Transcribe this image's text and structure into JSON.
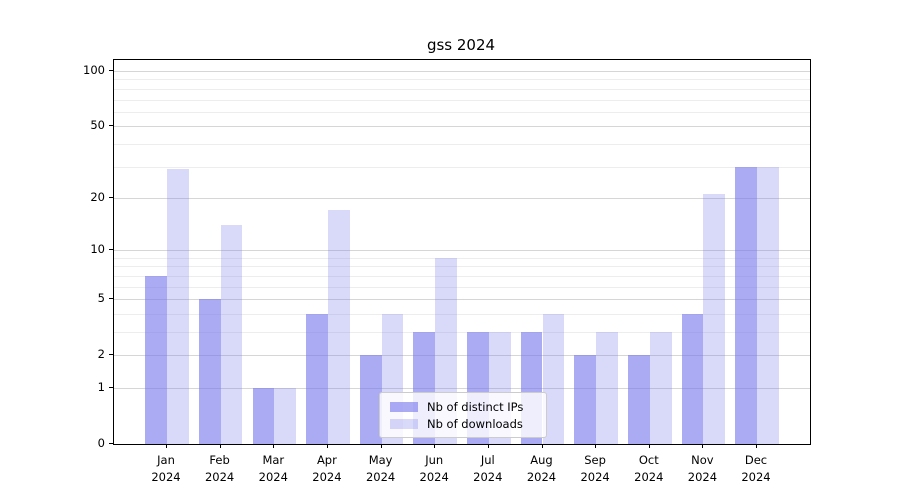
{
  "title": "gss 2024",
  "chart_data": {
    "type": "bar",
    "title": "gss 2024",
    "categories": [
      "Jan 2024",
      "Feb 2024",
      "Mar 2024",
      "Apr 2024",
      "May 2024",
      "Jun 2024",
      "Jul 2024",
      "Aug 2024",
      "Sep 2024",
      "Oct 2024",
      "Nov 2024",
      "Dec 2024"
    ],
    "series": [
      {
        "name": "Nb of distinct IPs",
        "values": [
          7,
          5,
          1,
          4,
          2,
          3,
          3,
          3,
          2,
          2,
          4,
          30
        ],
        "color": "rgba(119,119,238,0.62)"
      },
      {
        "name": "Nb of downloads",
        "values": [
          29,
          14,
          1,
          17,
          4,
          9,
          3,
          4,
          3,
          3,
          21,
          30
        ],
        "color": "rgba(119,119,238,0.28)"
      }
    ],
    "xlabel": "",
    "ylabel": "",
    "yscale": "log10(1+x)",
    "ylim": [
      0,
      115
    ],
    "y_tick_values": [
      100,
      50,
      20,
      10,
      5,
      2,
      1,
      0
    ],
    "y_major_gridlines": [
      1,
      2,
      5,
      10,
      20,
      50,
      100
    ],
    "y_minor_gridlines": [
      3,
      4,
      6,
      7,
      8,
      9,
      30,
      40,
      60,
      70,
      80,
      90
    ],
    "grid": true,
    "legend_position": "lower center"
  },
  "legend": {
    "items": [
      {
        "label": "Nb of distinct IPs",
        "swatch_color": "rgba(119,119,238,0.62)"
      },
      {
        "label": "Nb of downloads",
        "swatch_color": "rgba(119,119,238,0.28)"
      }
    ]
  },
  "colors": {
    "bar_ips": "rgba(119,119,238,0.62)",
    "bar_downloads": "rgba(119,119,238,0.28)",
    "grid_major": "#d6d6d6",
    "grid_minor": "#ededed",
    "spine": "#000000",
    "background": "#ffffff"
  }
}
